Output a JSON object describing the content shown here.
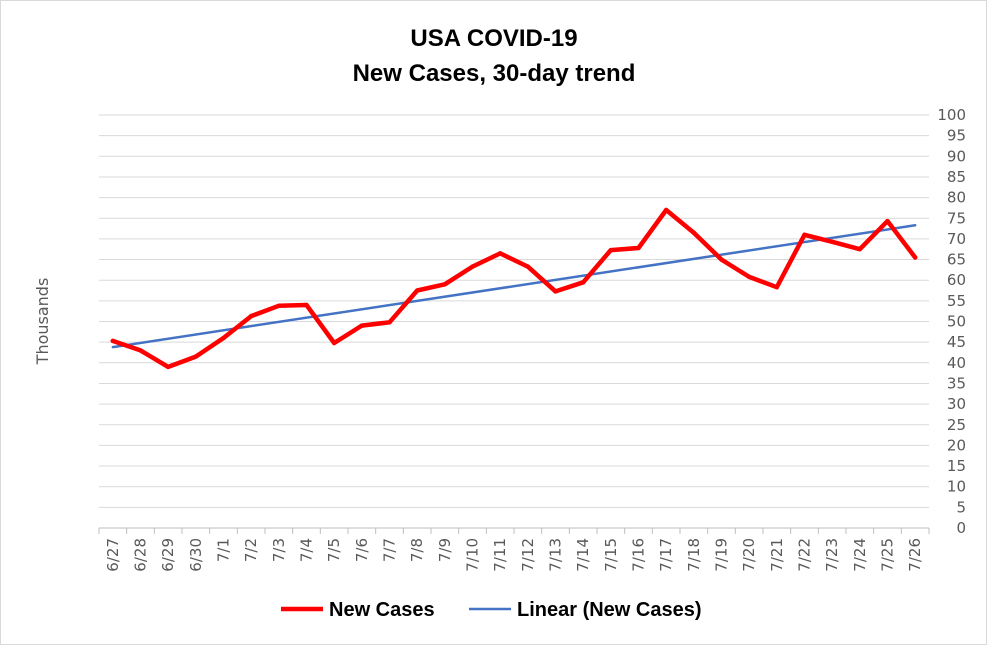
{
  "chart_data": {
    "type": "line",
    "title_lines": [
      "USA COVID-19",
      "New Cases, 30-day trend"
    ],
    "xlabel": "",
    "ylabel": "Thousands",
    "categories": [
      "6/27",
      "6/28",
      "6/29",
      "6/30",
      "7/1",
      "7/2",
      "7/3",
      "7/4",
      "7/5",
      "7/6",
      "7/7",
      "7/8",
      "7/9",
      "7/10",
      "7/11",
      "7/12",
      "7/13",
      "7/14",
      "7/15",
      "7/16",
      "7/17",
      "7/18",
      "7/19",
      "7/20",
      "7/21",
      "7/22",
      "7/23",
      "7/24",
      "7/25",
      "7/26"
    ],
    "y_ticks": [
      0,
      5,
      10,
      15,
      20,
      25,
      30,
      35,
      40,
      45,
      50,
      55,
      60,
      65,
      70,
      75,
      80,
      85,
      90,
      95,
      100
    ],
    "ylim": [
      0,
      100
    ],
    "y_axis_side": "right",
    "grid": true,
    "legend_position": "bottom",
    "series": [
      {
        "name": "New Cases",
        "color": "#ff0000",
        "values": [
          45.3,
          43.0,
          39.0,
          41.5,
          46.0,
          51.3,
          53.8,
          54.0,
          44.8,
          49.0,
          49.8,
          57.5,
          59.0,
          63.3,
          66.5,
          63.3,
          57.3,
          59.5,
          67.3,
          67.8,
          77.0,
          71.5,
          65.0,
          60.8,
          58.3,
          71.0,
          69.3,
          67.5,
          74.3,
          65.5
        ]
      }
    ],
    "trendline": {
      "name": "Linear (New Cases)",
      "type": "linear",
      "color": "#4472c4",
      "start": 43.8,
      "end": 73.3
    }
  }
}
